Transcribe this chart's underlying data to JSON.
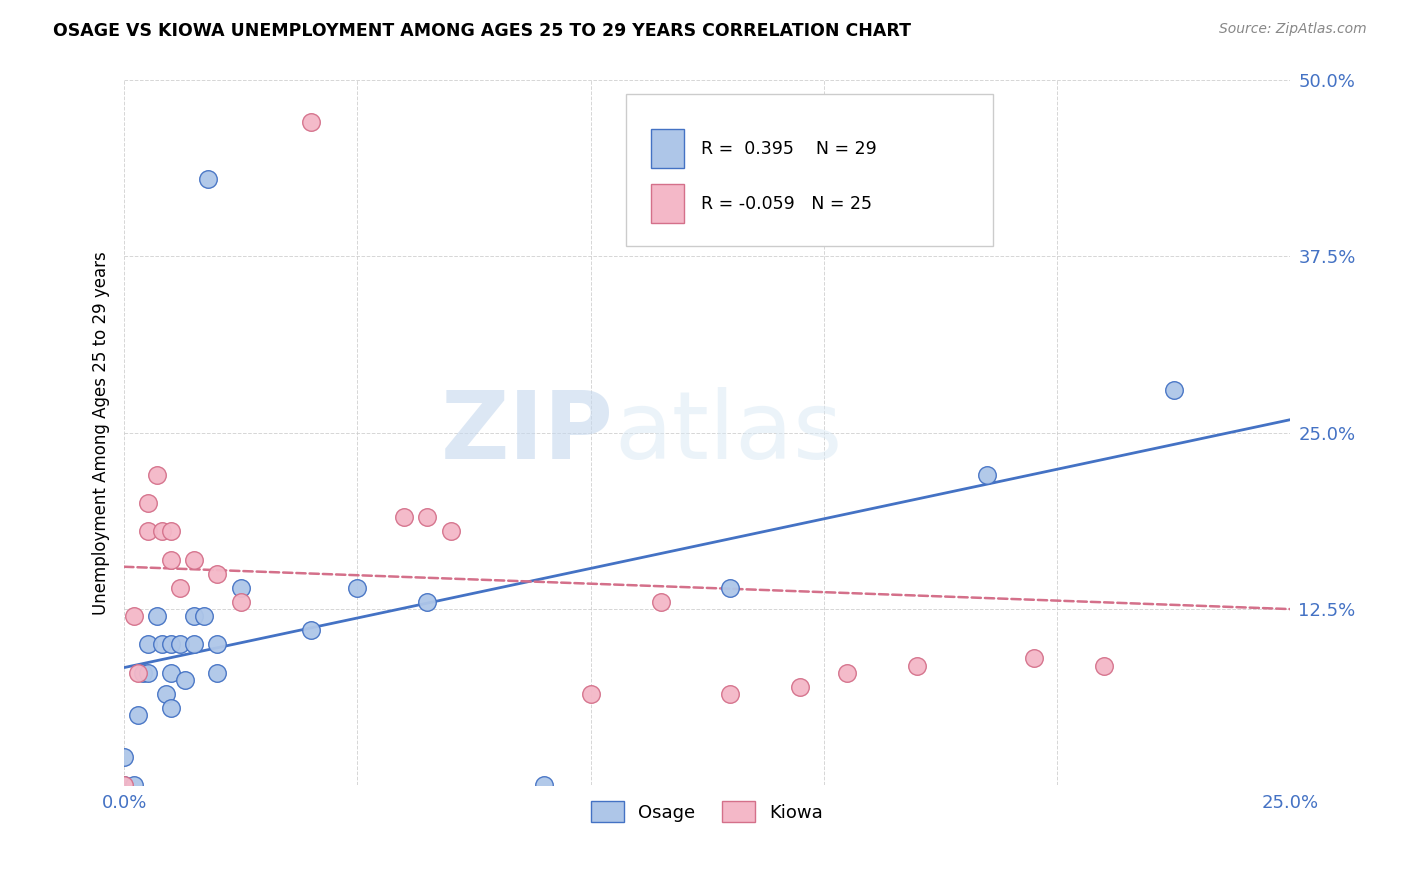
{
  "title": "OSAGE VS KIOWA UNEMPLOYMENT AMONG AGES 25 TO 29 YEARS CORRELATION CHART",
  "source": "Source: ZipAtlas.com",
  "ylabel": "Unemployment Among Ages 25 to 29 years",
  "xlim": [
    0.0,
    0.25
  ],
  "ylim": [
    0.0,
    0.5
  ],
  "xticks": [
    0.0,
    0.05,
    0.1,
    0.15,
    0.2,
    0.25
  ],
  "yticks": [
    0.0,
    0.125,
    0.25,
    0.375,
    0.5
  ],
  "xticklabels": [
    "0.0%",
    "",
    "",
    "",
    "",
    "25.0%"
  ],
  "yticklabels": [
    "",
    "12.5%",
    "25.0%",
    "37.5%",
    "50.0%"
  ],
  "osage_color": "#aec6e8",
  "kiowa_color": "#f4b8c8",
  "osage_line_color": "#4472c4",
  "kiowa_line_color": "#d4708a",
  "legend_r_osage": "0.395",
  "legend_n_osage": "29",
  "legend_r_kiowa": "-0.059",
  "legend_n_kiowa": "25",
  "watermark_zip": "ZIP",
  "watermark_atlas": "atlas",
  "osage_x": [
    0.0,
    0.0,
    0.002,
    0.003,
    0.004,
    0.005,
    0.005,
    0.007,
    0.008,
    0.009,
    0.01,
    0.01,
    0.01,
    0.012,
    0.013,
    0.015,
    0.015,
    0.017,
    0.018,
    0.02,
    0.02,
    0.025,
    0.04,
    0.05,
    0.065,
    0.09,
    0.13,
    0.185,
    0.225
  ],
  "osage_y": [
    0.0,
    0.02,
    0.0,
    0.05,
    0.08,
    0.08,
    0.1,
    0.12,
    0.1,
    0.065,
    0.055,
    0.08,
    0.1,
    0.1,
    0.075,
    0.1,
    0.12,
    0.12,
    0.43,
    0.08,
    0.1,
    0.14,
    0.11,
    0.14,
    0.13,
    0.0,
    0.14,
    0.22,
    0.28
  ],
  "kiowa_x": [
    0.0,
    0.002,
    0.003,
    0.005,
    0.005,
    0.007,
    0.008,
    0.01,
    0.01,
    0.012,
    0.015,
    0.02,
    0.025,
    0.04,
    0.06,
    0.065,
    0.07,
    0.1,
    0.115,
    0.13,
    0.145,
    0.155,
    0.17,
    0.195,
    0.21
  ],
  "kiowa_y": [
    0.0,
    0.12,
    0.08,
    0.18,
    0.2,
    0.22,
    0.18,
    0.16,
    0.18,
    0.14,
    0.16,
    0.15,
    0.13,
    0.47,
    0.19,
    0.19,
    0.18,
    0.065,
    0.13,
    0.065,
    0.07,
    0.08,
    0.085,
    0.09,
    0.085
  ]
}
